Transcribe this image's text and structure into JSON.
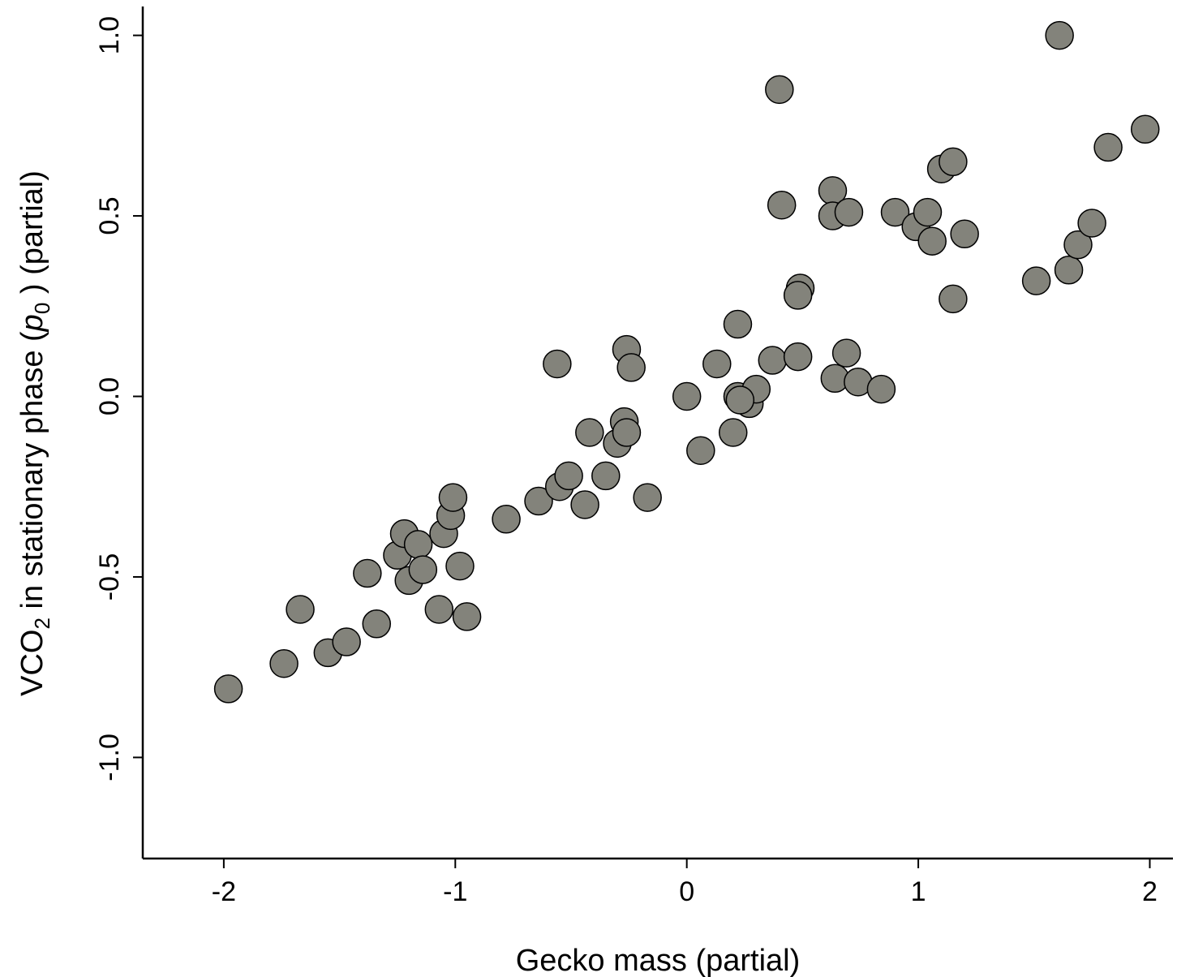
{
  "chart_data": {
    "type": "scatter",
    "xlabel": "Gecko mass (partial)",
    "ylabel": {
      "prefix": "VCO",
      "sub1": "2",
      "middle": " in stationary phase (",
      "var": "p",
      "sub2": "0",
      "suffix": " ) (partial)"
    },
    "xlim": [
      -2.35,
      2.1
    ],
    "ylim": [
      -1.28,
      1.08
    ],
    "xticks": [
      "-2",
      "-1",
      "0",
      "1",
      "2"
    ],
    "yticks": [
      "-1.0",
      "-0.5",
      "0.0",
      "0.5",
      "1.0"
    ],
    "grid": false,
    "point_color": "#83837b",
    "points": [
      [
        -1.98,
        -0.81
      ],
      [
        -1.74,
        -0.74
      ],
      [
        -1.67,
        -0.59
      ],
      [
        -1.55,
        -0.71
      ],
      [
        -1.47,
        -0.68
      ],
      [
        -1.38,
        -0.49
      ],
      [
        -1.34,
        -0.63
      ],
      [
        -1.25,
        -0.44
      ],
      [
        -1.22,
        -0.38
      ],
      [
        -1.2,
        -0.51
      ],
      [
        -1.16,
        -0.41
      ],
      [
        -1.14,
        -0.48
      ],
      [
        -1.07,
        -0.59
      ],
      [
        -1.05,
        -0.38
      ],
      [
        -1.02,
        -0.33
      ],
      [
        -1.01,
        -0.28
      ],
      [
        -0.98,
        -0.47
      ],
      [
        -0.95,
        -0.61
      ],
      [
        -0.78,
        -0.34
      ],
      [
        -0.64,
        -0.29
      ],
      [
        -0.55,
        -0.25
      ],
      [
        -0.51,
        -0.22
      ],
      [
        -0.56,
        0.09
      ],
      [
        -0.44,
        -0.3
      ],
      [
        -0.42,
        -0.1
      ],
      [
        -0.35,
        -0.22
      ],
      [
        -0.3,
        -0.13
      ],
      [
        -0.27,
        -0.07
      ],
      [
        -0.26,
        -0.1
      ],
      [
        -0.26,
        0.13
      ],
      [
        -0.24,
        0.08
      ],
      [
        -0.17,
        -0.28
      ],
      [
        0.0,
        0.0
      ],
      [
        0.06,
        -0.15
      ],
      [
        0.13,
        0.09
      ],
      [
        0.2,
        -0.1
      ],
      [
        0.22,
        0.2
      ],
      [
        0.22,
        0.0
      ],
      [
        0.27,
        -0.02
      ],
      [
        0.3,
        0.02
      ],
      [
        0.23,
        -0.01
      ],
      [
        0.37,
        0.1
      ],
      [
        0.4,
        0.85
      ],
      [
        0.41,
        0.53
      ],
      [
        0.48,
        0.11
      ],
      [
        0.49,
        0.3
      ],
      [
        0.48,
        0.28
      ],
      [
        0.63,
        0.57
      ],
      [
        0.63,
        0.5
      ],
      [
        0.64,
        0.05
      ],
      [
        0.69,
        0.12
      ],
      [
        0.7,
        0.51
      ],
      [
        0.74,
        0.04
      ],
      [
        0.84,
        0.02
      ],
      [
        0.9,
        0.51
      ],
      [
        0.99,
        0.47
      ],
      [
        1.04,
        0.51
      ],
      [
        1.06,
        0.43
      ],
      [
        1.1,
        0.63
      ],
      [
        1.15,
        0.65
      ],
      [
        1.15,
        0.27
      ],
      [
        1.2,
        0.45
      ],
      [
        1.51,
        0.32
      ],
      [
        1.61,
        1.0
      ],
      [
        1.65,
        0.35
      ],
      [
        1.69,
        0.42
      ],
      [
        1.75,
        0.48
      ],
      [
        1.82,
        0.69
      ],
      [
        1.98,
        0.74
      ]
    ]
  }
}
